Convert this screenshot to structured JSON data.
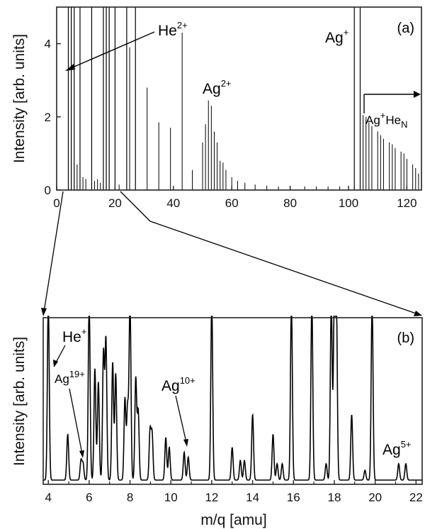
{
  "chart_data": [
    {
      "panel": "(a)",
      "type": "line",
      "xlabel": "",
      "ylabel": "Intensity [arb. units]",
      "xlim": [
        0,
        125
      ],
      "ylim": [
        0,
        5
      ],
      "xticks": [
        "0",
        "20",
        "40",
        "60",
        "80",
        "100",
        "120"
      ],
      "yticks": [
        "0",
        "2",
        "4"
      ],
      "peaks": [
        {
          "x": 4.0,
          "y": 5.0
        },
        {
          "x": 5.0,
          "y": 5.0
        },
        {
          "x": 6.0,
          "y": 5.0
        },
        {
          "x": 7.0,
          "y": 0.7
        },
        {
          "x": 8.0,
          "y": 5.0
        },
        {
          "x": 9.0,
          "y": 0.35
        },
        {
          "x": 10.0,
          "y": 0.3
        },
        {
          "x": 12.0,
          "y": 5.0
        },
        {
          "x": 13.0,
          "y": 0.25
        },
        {
          "x": 14.0,
          "y": 0.3
        },
        {
          "x": 15.0,
          "y": 0.2
        },
        {
          "x": 16.0,
          "y": 5.0
        },
        {
          "x": 17.0,
          "y": 5.0
        },
        {
          "x": 18.0,
          "y": 5.0
        },
        {
          "x": 20.0,
          "y": 5.0
        },
        {
          "x": 21.4,
          "y": 0.15
        },
        {
          "x": 24.0,
          "y": 5.0
        },
        {
          "x": 25.0,
          "y": 3.9
        },
        {
          "x": 27.0,
          "y": 5.0
        },
        {
          "x": 31.0,
          "y": 2.8
        },
        {
          "x": 35.0,
          "y": 1.85
        },
        {
          "x": 39.0,
          "y": 1.7
        },
        {
          "x": 43.0,
          "y": 4.3
        },
        {
          "x": 46.5,
          "y": 0.55
        },
        {
          "x": 50.0,
          "y": 1.3
        },
        {
          "x": 51.0,
          "y": 1.8
        },
        {
          "x": 52.0,
          "y": 2.45
        },
        {
          "x": 53.0,
          "y": 2.3
        },
        {
          "x": 54.0,
          "y": 1.6
        },
        {
          "x": 55.0,
          "y": 1.3
        },
        {
          "x": 56.0,
          "y": 0.8
        },
        {
          "x": 57.0,
          "y": 0.75
        },
        {
          "x": 58.0,
          "y": 0.55
        },
        {
          "x": 60.0,
          "y": 0.35
        },
        {
          "x": 62.0,
          "y": 0.25
        },
        {
          "x": 64.5,
          "y": 0.2
        },
        {
          "x": 68.0,
          "y": 0.15
        },
        {
          "x": 72.0,
          "y": 0.12
        },
        {
          "x": 76.0,
          "y": 0.1
        },
        {
          "x": 80.0,
          "y": 0.1
        },
        {
          "x": 85.0,
          "y": 0.1
        },
        {
          "x": 89.0,
          "y": 0.1
        },
        {
          "x": 93.0,
          "y": 0.1
        },
        {
          "x": 97.0,
          "y": 0.1
        },
        {
          "x": 102.0,
          "y": 5.0
        },
        {
          "x": 104.0,
          "y": 5.0
        },
        {
          "x": 105.0,
          "y": 2.05
        },
        {
          "x": 106.0,
          "y": 2.0
        },
        {
          "x": 107.0,
          "y": 1.85
        },
        {
          "x": 108.0,
          "y": 1.75
        },
        {
          "x": 110.0,
          "y": 1.6
        },
        {
          "x": 111.0,
          "y": 1.5
        },
        {
          "x": 112.0,
          "y": 1.4
        },
        {
          "x": 114.0,
          "y": 1.3
        },
        {
          "x": 115.0,
          "y": 1.25
        },
        {
          "x": 116.0,
          "y": 1.15
        },
        {
          "x": 118.0,
          "y": 1.05
        },
        {
          "x": 119.0,
          "y": 1.0
        },
        {
          "x": 120.0,
          "y": 0.85
        },
        {
          "x": 122.0,
          "y": 0.7
        },
        {
          "x": 123.0,
          "y": 0.6
        },
        {
          "x": 124.0,
          "y": 0.45
        }
      ],
      "annotations": [
        {
          "base": "He",
          "sup": "2+",
          "sub": ""
        },
        {
          "base": "Ag",
          "sup": "2+",
          "sub": ""
        },
        {
          "base": "Ag",
          "sup": "+",
          "sub": ""
        },
        {
          "base": "Ag",
          "sup": "+",
          "sub": "",
          "tail": "He",
          "tail_sub": "N"
        }
      ],
      "panel_label": "(a)"
    },
    {
      "panel": "(b)",
      "type": "line",
      "xlabel": "m/q [amu]",
      "ylabel": "Intensity [arb. units]",
      "xlim": [
        3.75,
        22.3
      ],
      "ylim": [
        0,
        1
      ],
      "xticks": [
        "4",
        "6",
        "8",
        "10",
        "12",
        "14",
        "16",
        "18",
        "20",
        "22"
      ],
      "peaks": [
        {
          "x": 4.0,
          "y": 1.1
        },
        {
          "x": 4.95,
          "y": 0.28
        },
        {
          "x": 5.6,
          "y": 0.12
        },
        {
          "x": 5.7,
          "y": 0.1
        },
        {
          "x": 6.0,
          "y": 1.1
        },
        {
          "x": 6.28,
          "y": 0.68
        },
        {
          "x": 6.45,
          "y": 0.6
        },
        {
          "x": 6.7,
          "y": 0.78
        },
        {
          "x": 6.82,
          "y": 0.86
        },
        {
          "x": 7.15,
          "y": 0.72
        },
        {
          "x": 7.3,
          "y": 0.65
        },
        {
          "x": 7.75,
          "y": 0.5
        },
        {
          "x": 7.88,
          "y": 0.44
        },
        {
          "x": 8.0,
          "y": 1.1
        },
        {
          "x": 8.28,
          "y": 0.62
        },
        {
          "x": 8.4,
          "y": 0.42
        },
        {
          "x": 8.98,
          "y": 0.3
        },
        {
          "x": 9.08,
          "y": 0.28
        },
        {
          "x": 9.75,
          "y": 0.26
        },
        {
          "x": 9.92,
          "y": 0.2
        },
        {
          "x": 10.65,
          "y": 0.17
        },
        {
          "x": 10.85,
          "y": 0.14
        },
        {
          "x": 12.0,
          "y": 1.1
        },
        {
          "x": 13.0,
          "y": 0.2
        },
        {
          "x": 13.4,
          "y": 0.12
        },
        {
          "x": 13.6,
          "y": 0.12
        },
        {
          "x": 14.0,
          "y": 0.4
        },
        {
          "x": 15.0,
          "y": 0.28
        },
        {
          "x": 15.2,
          "y": 0.1
        },
        {
          "x": 15.45,
          "y": 0.1
        },
        {
          "x": 15.9,
          "y": 1.1
        },
        {
          "x": 16.9,
          "y": 1.1
        },
        {
          "x": 17.6,
          "y": 0.1
        },
        {
          "x": 17.85,
          "y": 1.1
        },
        {
          "x": 18.0,
          "y": 1.1
        },
        {
          "x": 18.1,
          "y": 1.1
        },
        {
          "x": 18.85,
          "y": 0.4
        },
        {
          "x": 19.5,
          "y": 0.06
        },
        {
          "x": 19.85,
          "y": 1.1
        },
        {
          "x": 21.15,
          "y": 0.1
        },
        {
          "x": 21.5,
          "y": 0.1
        }
      ],
      "annotations": [
        {
          "base": "He",
          "sup": "+"
        },
        {
          "base": "Ag",
          "sup": "19+"
        },
        {
          "base": "Ag",
          "sup": "10+"
        },
        {
          "base": "Ag",
          "sup": "5+"
        }
      ],
      "panel_label": "(b)"
    }
  ],
  "colors": {
    "line": "#000000",
    "axis": "#222222"
  }
}
